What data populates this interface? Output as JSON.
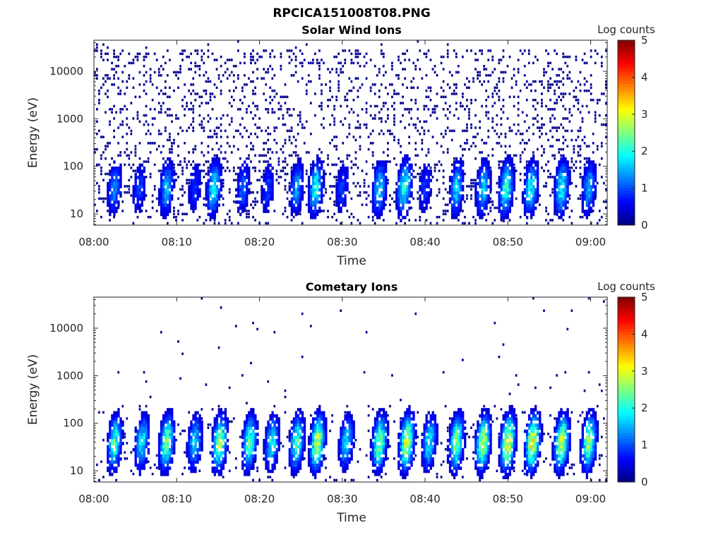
{
  "figure": {
    "title": "RPCICA151008T08.PNG"
  },
  "colorbar_colormap": "jet",
  "chart_data": [
    {
      "type": "heatmap",
      "title": "Solar Wind Ions",
      "xlabel": "Time",
      "ylabel": "Energy (eV)",
      "x_ticks": [
        "08:00",
        "08:10",
        "08:20",
        "08:30",
        "08:40",
        "08:50",
        "09:00"
      ],
      "x_tick_minutes": [
        0,
        10,
        20,
        30,
        40,
        50,
        60
      ],
      "xlim_minutes": [
        0,
        62
      ],
      "y_scale": "log",
      "y_ticks": [
        "10",
        "100",
        "1000",
        "10000"
      ],
      "y_tick_values": [
        10,
        100,
        1000,
        10000
      ],
      "ylim": [
        5.8,
        45000
      ],
      "colorbar": {
        "label": "Log counts",
        "ticks": [
          "0",
          "1",
          "2",
          "3",
          "4",
          "5"
        ],
        "range": [
          0,
          5
        ]
      },
      "bursts": [
        {
          "t": 2.5,
          "peak": 1.4
        },
        {
          "t": 5.5,
          "peak": 1.0
        },
        {
          "t": 8.8,
          "peak": 1.6
        },
        {
          "t": 12.2,
          "peak": 0.9
        },
        {
          "t": 14.5,
          "peak": 2.0
        },
        {
          "t": 18.0,
          "peak": 1.2
        },
        {
          "t": 21.0,
          "peak": 1.0
        },
        {
          "t": 24.5,
          "peak": 1.5
        },
        {
          "t": 26.8,
          "peak": 2.0
        },
        {
          "t": 30.0,
          "peak": 1.0
        },
        {
          "t": 34.5,
          "peak": 1.8
        },
        {
          "t": 37.5,
          "peak": 2.2
        },
        {
          "t": 40.0,
          "peak": 1.0
        },
        {
          "t": 43.8,
          "peak": 1.8
        },
        {
          "t": 47.0,
          "peak": 1.8
        },
        {
          "t": 49.8,
          "peak": 2.2
        },
        {
          "t": 52.8,
          "peak": 2.0
        },
        {
          "t": 56.5,
          "peak": 2.0
        },
        {
          "t": 59.8,
          "peak": 1.6
        }
      ],
      "background": "dense low-count speckle at 40-10000 eV"
    },
    {
      "type": "heatmap",
      "title": "Cometary Ions",
      "xlabel": "Time",
      "ylabel": "Energy (eV)",
      "x_ticks": [
        "08:00",
        "08:10",
        "08:20",
        "08:30",
        "08:40",
        "08:50",
        "09:00"
      ],
      "x_tick_minutes": [
        0,
        10,
        20,
        30,
        40,
        50,
        60
      ],
      "xlim_minutes": [
        0,
        62
      ],
      "y_scale": "log",
      "y_ticks": [
        "10",
        "100",
        "1000",
        "10000"
      ],
      "y_tick_values": [
        10,
        100,
        1000,
        10000
      ],
      "ylim": [
        5.8,
        45000
      ],
      "colorbar": {
        "label": "Log counts",
        "ticks": [
          "0",
          "1",
          "2",
          "3",
          "4",
          "5"
        ],
        "range": [
          0,
          5
        ]
      },
      "bursts": [
        {
          "t": 2.5,
          "peak": 2.3
        },
        {
          "t": 5.8,
          "peak": 2.0
        },
        {
          "t": 8.8,
          "peak": 2.6
        },
        {
          "t": 12.2,
          "peak": 1.8
        },
        {
          "t": 15.2,
          "peak": 2.8
        },
        {
          "t": 18.8,
          "peak": 2.4
        },
        {
          "t": 21.5,
          "peak": 2.0
        },
        {
          "t": 24.5,
          "peak": 2.4
        },
        {
          "t": 27.0,
          "peak": 3.0
        },
        {
          "t": 30.5,
          "peak": 1.8
        },
        {
          "t": 34.5,
          "peak": 2.7
        },
        {
          "t": 37.8,
          "peak": 3.2
        },
        {
          "t": 40.5,
          "peak": 2.0
        },
        {
          "t": 43.8,
          "peak": 2.8
        },
        {
          "t": 47.0,
          "peak": 3.0
        },
        {
          "t": 50.0,
          "peak": 3.3
        },
        {
          "t": 53.0,
          "peak": 3.2
        },
        {
          "t": 56.5,
          "peak": 3.0
        },
        {
          "t": 59.8,
          "peak": 2.8
        }
      ],
      "background": "sparse low-count points up to ~20000 eV"
    }
  ]
}
